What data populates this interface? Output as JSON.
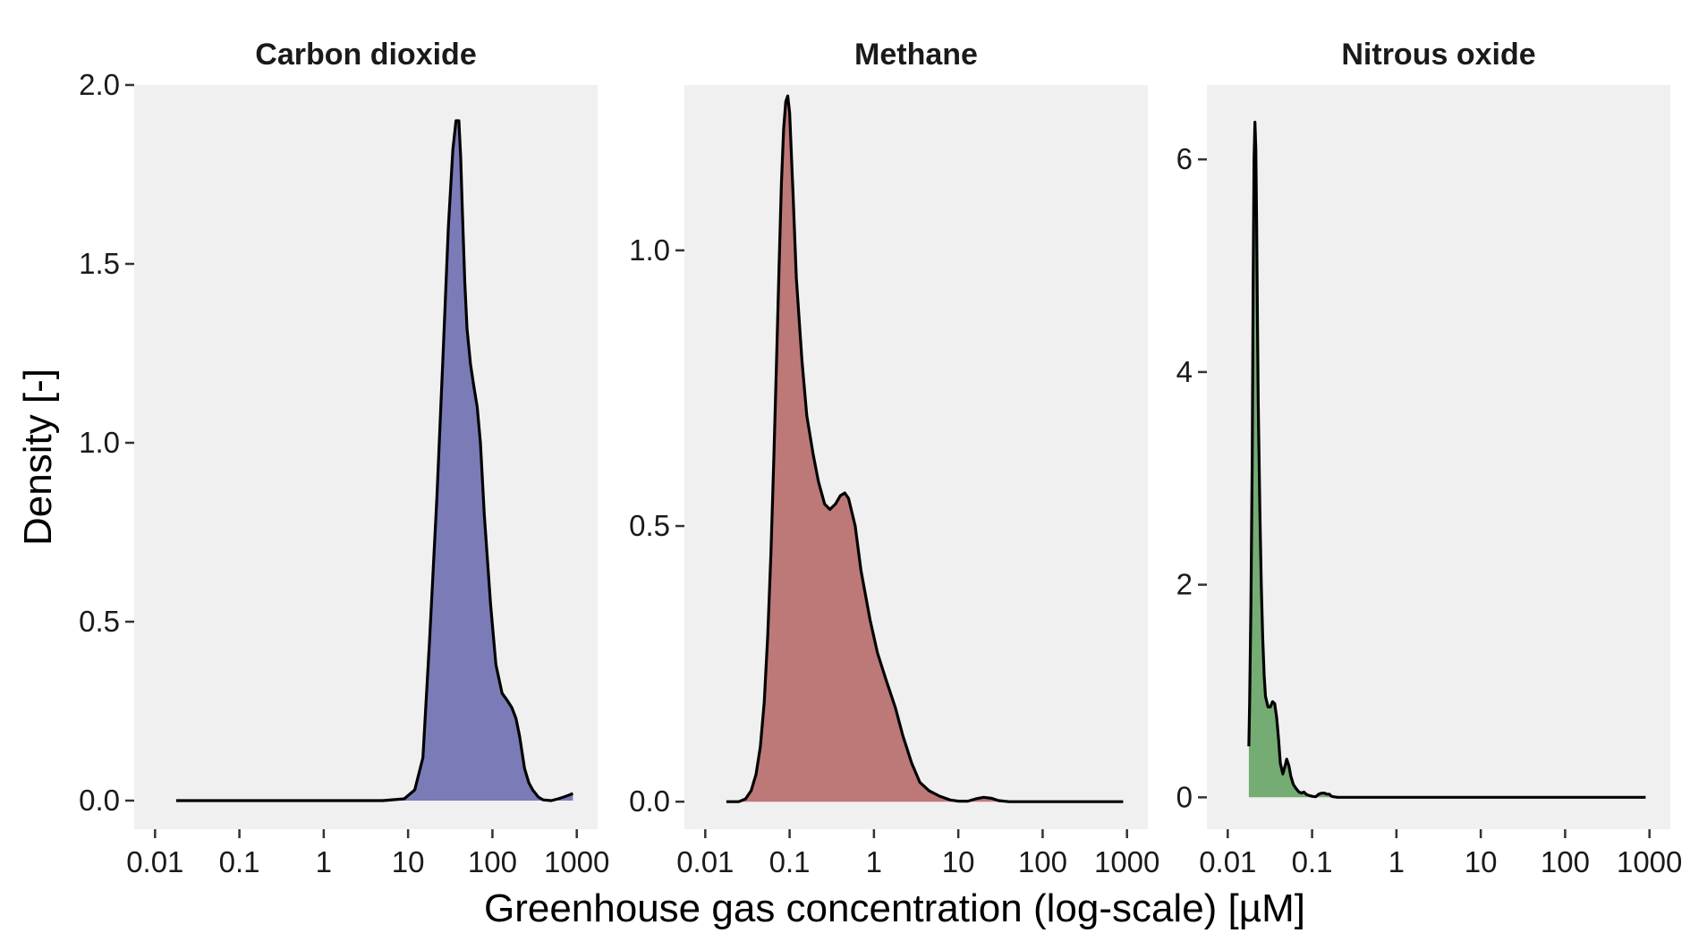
{
  "chart_data": {
    "type": "area",
    "xlabel": "Greenhouse gas concentration (log-scale) [µM]",
    "ylabel": "Density [-]",
    "x_scale": "log10",
    "x_tick_labels": [
      "0.01",
      "0.1",
      "1",
      "10",
      "100",
      "1000"
    ],
    "panels": [
      {
        "title": "Carbon dioxide",
        "fill": "#7b7bb8",
        "xlim": [
          0.01,
          1000
        ],
        "ylim": [
          -0.08,
          2.0
        ],
        "y_ticks": [
          0.0,
          0.5,
          1.0,
          1.5,
          2.0
        ],
        "y_tick_labels": [
          "0.0",
          "0.5",
          "1.0",
          "1.5",
          "2.0"
        ],
        "x": [
          0.0178,
          5,
          9,
          12,
          15,
          18,
          22,
          26,
          30,
          34,
          37,
          40,
          42,
          44,
          47,
          50,
          55,
          60,
          66,
          72,
          80,
          95,
          110,
          130,
          150,
          170,
          190,
          210,
          240,
          270,
          300,
          350,
          400,
          500,
          600,
          700,
          800,
          900
        ],
        "y": [
          0,
          0,
          0.005,
          0.03,
          0.12,
          0.45,
          0.85,
          1.25,
          1.6,
          1.82,
          1.9,
          1.9,
          1.8,
          1.65,
          1.45,
          1.32,
          1.22,
          1.16,
          1.1,
          1.0,
          0.8,
          0.55,
          0.38,
          0.3,
          0.28,
          0.26,
          0.23,
          0.18,
          0.09,
          0.05,
          0.03,
          0.01,
          0.002,
          0,
          0.005,
          0.01,
          0.015,
          0.02
        ]
      },
      {
        "title": "Methane",
        "fill": "#bd7878",
        "xlim": [
          0.01,
          1000
        ],
        "ylim": [
          -0.05,
          1.3
        ],
        "y_ticks": [
          0.0,
          0.5,
          1.0
        ],
        "y_tick_labels": [
          "0.0",
          "0.5",
          "1.0"
        ],
        "x": [
          0.0178,
          0.025,
          0.03,
          0.035,
          0.04,
          0.045,
          0.05,
          0.055,
          0.06,
          0.065,
          0.07,
          0.075,
          0.08,
          0.085,
          0.09,
          0.095,
          0.1,
          0.11,
          0.12,
          0.14,
          0.16,
          0.19,
          0.22,
          0.26,
          0.3,
          0.35,
          0.4,
          0.45,
          0.5,
          0.6,
          0.7,
          0.9,
          1.1,
          1.4,
          1.8,
          2.2,
          2.8,
          3.5,
          4.5,
          6,
          8,
          10,
          13,
          16,
          20,
          25,
          30,
          40,
          60,
          100,
          300,
          900
        ],
        "y": [
          0,
          0,
          0.005,
          0.02,
          0.05,
          0.1,
          0.18,
          0.3,
          0.45,
          0.62,
          0.8,
          0.97,
          1.12,
          1.22,
          1.27,
          1.28,
          1.25,
          1.1,
          0.95,
          0.8,
          0.7,
          0.63,
          0.58,
          0.54,
          0.53,
          0.54,
          0.555,
          0.56,
          0.55,
          0.5,
          0.42,
          0.33,
          0.27,
          0.22,
          0.17,
          0.12,
          0.07,
          0.035,
          0.02,
          0.01,
          0.003,
          0.001,
          0.001,
          0.005,
          0.008,
          0.006,
          0.002,
          0,
          0,
          0,
          0,
          0
        ]
      },
      {
        "title": "Nitrous oxide",
        "fill": "#74ac74",
        "xlim": [
          0.01,
          1000
        ],
        "ylim": [
          -0.3,
          6.7
        ],
        "y_ticks": [
          0,
          2,
          4,
          6
        ],
        "y_tick_labels": [
          "0",
          "2",
          "4",
          "6"
        ],
        "x": [
          0.0178,
          0.0182,
          0.0188,
          0.0195,
          0.02,
          0.0205,
          0.021,
          0.0215,
          0.022,
          0.0225,
          0.023,
          0.024,
          0.025,
          0.026,
          0.027,
          0.028,
          0.03,
          0.032,
          0.034,
          0.036,
          0.038,
          0.04,
          0.042,
          0.045,
          0.048,
          0.05,
          0.053,
          0.056,
          0.06,
          0.065,
          0.07,
          0.075,
          0.08,
          0.085,
          0.09,
          0.1,
          0.11,
          0.12,
          0.13,
          0.14,
          0.15,
          0.16,
          0.17,
          0.18,
          0.2,
          0.3,
          1,
          10,
          100,
          900
        ],
        "y": [
          0.48,
          0.9,
          1.8,
          3.2,
          4.8,
          6.0,
          6.35,
          6.1,
          5.4,
          4.5,
          3.7,
          2.7,
          2.0,
          1.5,
          1.15,
          0.95,
          0.85,
          0.85,
          0.9,
          0.88,
          0.75,
          0.55,
          0.32,
          0.22,
          0.3,
          0.36,
          0.3,
          0.2,
          0.12,
          0.08,
          0.05,
          0.04,
          0.05,
          0.03,
          0.02,
          0.01,
          0.005,
          0.03,
          0.04,
          0.04,
          0.03,
          0.03,
          0.01,
          0.005,
          0,
          0,
          0,
          0,
          0,
          0
        ]
      }
    ]
  }
}
